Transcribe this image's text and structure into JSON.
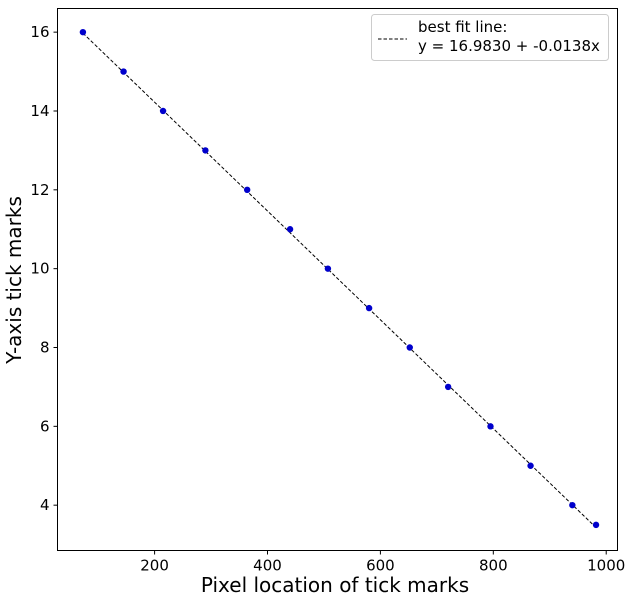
{
  "chart_data": {
    "type": "scatter",
    "xlabel": "Pixel location of tick marks",
    "ylabel": "Y-axis tick marks",
    "xlim": [
      28,
      1020
    ],
    "ylim": [
      2.85,
      16.6
    ],
    "x_ticks": [
      "200",
      "400",
      "600",
      "800",
      "1000"
    ],
    "y_ticks": [
      "4",
      "6",
      "8",
      "10",
      "12",
      "14",
      "16"
    ],
    "grid": false,
    "legend_position": "top-right",
    "series": [
      {
        "type": "scatter",
        "color": "#0000cc",
        "points": [
          {
            "x": 73,
            "y": 16
          },
          {
            "x": 145,
            "y": 15
          },
          {
            "x": 215,
            "y": 14
          },
          {
            "x": 290,
            "y": 13
          },
          {
            "x": 364,
            "y": 12
          },
          {
            "x": 440,
            "y": 11
          },
          {
            "x": 507,
            "y": 10
          },
          {
            "x": 580,
            "y": 9
          },
          {
            "x": 652,
            "y": 8
          },
          {
            "x": 720,
            "y": 7
          },
          {
            "x": 795,
            "y": 6
          },
          {
            "x": 866,
            "y": 5
          },
          {
            "x": 940,
            "y": 4
          },
          {
            "x": 982,
            "y": 3.5
          }
        ]
      },
      {
        "type": "line",
        "name": "best fit line:\ny = 16.9830 + -0.0138x",
        "name_lines": [
          "best fit line:",
          "y = 16.9830 + -0.0138x"
        ],
        "style": "dashed",
        "color": "#000000",
        "intercept": 16.983,
        "slope": -0.0138,
        "x_range": [
          73,
          982
        ]
      }
    ]
  }
}
